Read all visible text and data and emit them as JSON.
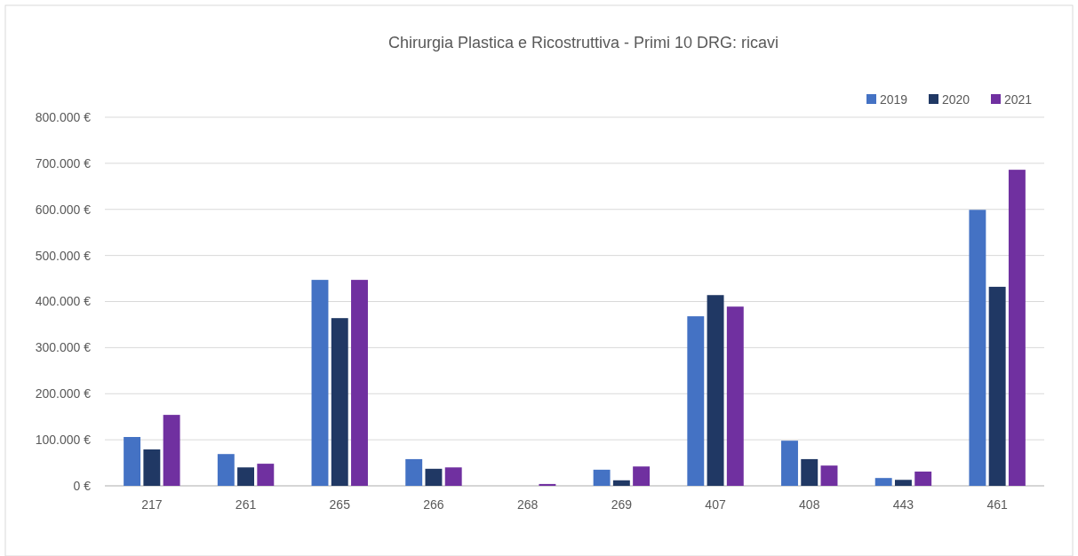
{
  "chart_data": {
    "type": "bar",
    "title": "Chirurgia Plastica e Ricostruttiva - Primi 10 DRG: ricavi",
    "categories": [
      "217",
      "261",
      "265",
      "266",
      "268",
      "269",
      "407",
      "408",
      "443",
      "461"
    ],
    "series": [
      {
        "name": "2019",
        "color": "#4472c4",
        "values": [
          106000,
          69000,
          447000,
          58000,
          0,
          35000,
          368000,
          98000,
          17000,
          599000
        ]
      },
      {
        "name": "2020",
        "color": "#203864",
        "values": [
          79000,
          40000,
          364000,
          37000,
          0,
          12000,
          414000,
          58000,
          13000,
          432000
        ]
      },
      {
        "name": "2021",
        "color": "#7030a0",
        "values": [
          154000,
          48000,
          447000,
          40000,
          4000,
          42000,
          389000,
          44000,
          31000,
          686000
        ]
      }
    ],
    "ylim": [
      0,
      800000
    ],
    "yticks": [
      {
        "value": 0,
        "label": "0 €"
      },
      {
        "value": 100000,
        "label": "100.000 €"
      },
      {
        "value": 200000,
        "label": "200.000 €"
      },
      {
        "value": 300000,
        "label": "300.000 €"
      },
      {
        "value": 400000,
        "label": "400.000 €"
      },
      {
        "value": 500000,
        "label": "500.000 €"
      },
      {
        "value": 600000,
        "label": "600.000 €"
      },
      {
        "value": 700000,
        "label": "700.000 €"
      },
      {
        "value": 800000,
        "label": "800.000 €"
      }
    ],
    "grid": "y",
    "legend": "top right"
  }
}
